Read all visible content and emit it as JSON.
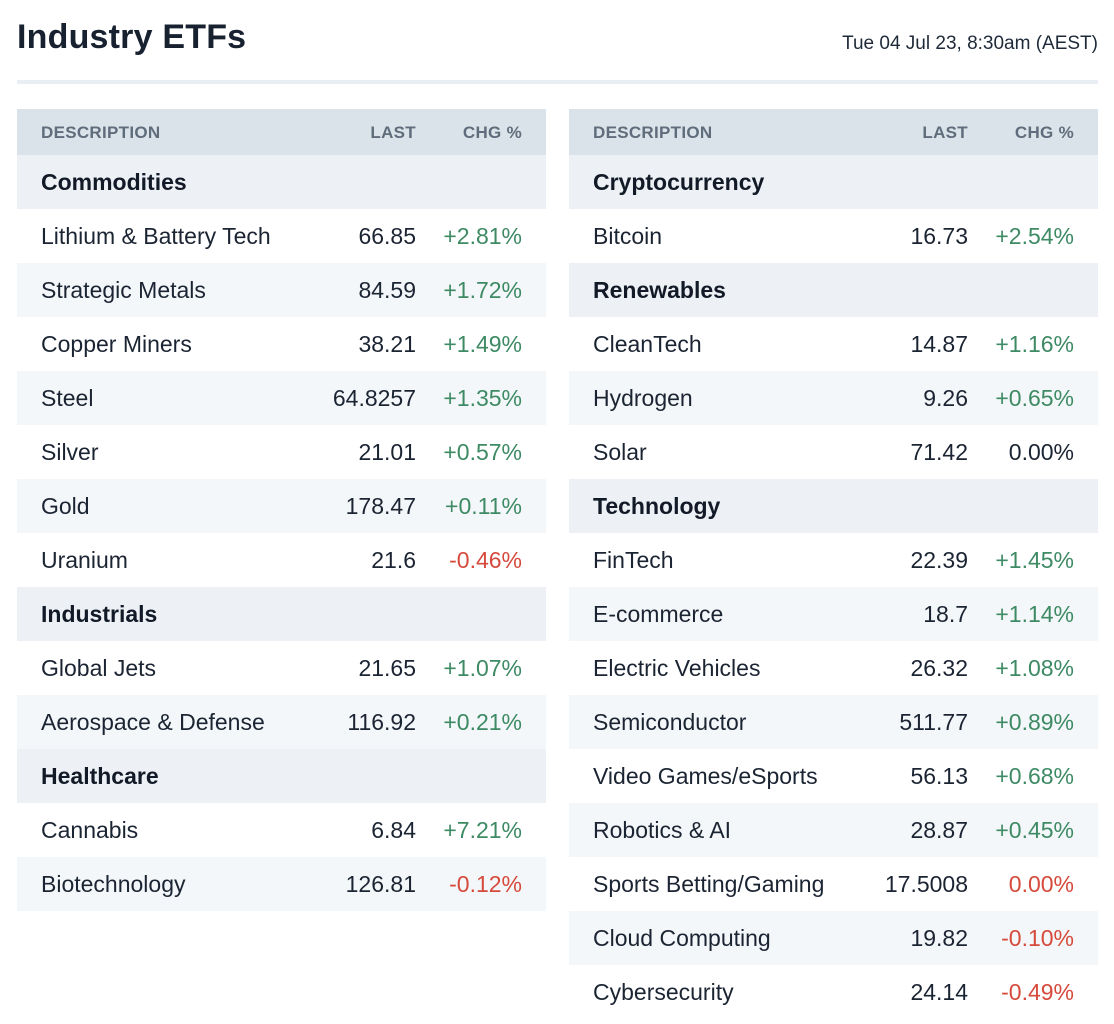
{
  "header": {
    "title": "Industry ETFs",
    "timestamp": "Tue 04 Jul 23, 8:30am (AEST)"
  },
  "table_headers": {
    "description": "DESCRIPTION",
    "last": "LAST",
    "change": "CHG %"
  },
  "colors": {
    "positive": "#3d8a64",
    "negative": "#d64a3c",
    "header_bg": "#dbe3ea",
    "category_bg": "#edf1f5"
  },
  "left_column": [
    {
      "type": "category",
      "name": "Commodities"
    },
    {
      "type": "item",
      "name": "Lithium & Battery Tech",
      "last": "66.85",
      "chg": "+2.81%",
      "dir": "pos"
    },
    {
      "type": "item",
      "name": "Strategic Metals",
      "last": "84.59",
      "chg": "+1.72%",
      "dir": "pos"
    },
    {
      "type": "item",
      "name": "Copper Miners",
      "last": "38.21",
      "chg": "+1.49%",
      "dir": "pos"
    },
    {
      "type": "item",
      "name": "Steel",
      "last": "64.8257",
      "chg": "+1.35%",
      "dir": "pos"
    },
    {
      "type": "item",
      "name": "Silver",
      "last": "21.01",
      "chg": "+0.57%",
      "dir": "pos"
    },
    {
      "type": "item",
      "name": "Gold",
      "last": "178.47",
      "chg": "+0.11%",
      "dir": "pos"
    },
    {
      "type": "item",
      "name": "Uranium",
      "last": "21.6",
      "chg": "-0.46%",
      "dir": "neg"
    },
    {
      "type": "category",
      "name": "Industrials"
    },
    {
      "type": "item",
      "name": "Global Jets",
      "last": "21.65",
      "chg": "+1.07%",
      "dir": "pos"
    },
    {
      "type": "item",
      "name": "Aerospace & Defense",
      "last": "116.92",
      "chg": "+0.21%",
      "dir": "pos"
    },
    {
      "type": "category",
      "name": "Healthcare"
    },
    {
      "type": "item",
      "name": "Cannabis",
      "last": "6.84",
      "chg": "+7.21%",
      "dir": "pos"
    },
    {
      "type": "item",
      "name": "Biotechnology",
      "last": "126.81",
      "chg": "-0.12%",
      "dir": "neg"
    }
  ],
  "right_column": [
    {
      "type": "category",
      "name": "Cryptocurrency"
    },
    {
      "type": "item",
      "name": "Bitcoin",
      "last": "16.73",
      "chg": "+2.54%",
      "dir": "pos"
    },
    {
      "type": "category",
      "name": "Renewables"
    },
    {
      "type": "item",
      "name": "CleanTech",
      "last": "14.87",
      "chg": "+1.16%",
      "dir": "pos"
    },
    {
      "type": "item",
      "name": "Hydrogen",
      "last": "9.26",
      "chg": "+0.65%",
      "dir": "pos"
    },
    {
      "type": "item",
      "name": "Solar",
      "last": "71.42",
      "chg": "0.00%",
      "dir": "flat"
    },
    {
      "type": "category",
      "name": "Technology"
    },
    {
      "type": "item",
      "name": "FinTech",
      "last": "22.39",
      "chg": "+1.45%",
      "dir": "pos"
    },
    {
      "type": "item",
      "name": "E-commerce",
      "last": "18.7",
      "chg": "+1.14%",
      "dir": "pos"
    },
    {
      "type": "item",
      "name": "Electric Vehicles",
      "last": "26.32",
      "chg": "+1.08%",
      "dir": "pos"
    },
    {
      "type": "item",
      "name": "Semiconductor",
      "last": "511.77",
      "chg": "+0.89%",
      "dir": "pos"
    },
    {
      "type": "item",
      "name": "Video Games/eSports",
      "last": "56.13",
      "chg": "+0.68%",
      "dir": "pos"
    },
    {
      "type": "item",
      "name": "Robotics & AI",
      "last": "28.87",
      "chg": "+0.45%",
      "dir": "pos"
    },
    {
      "type": "item",
      "name": "Sports Betting/Gaming",
      "last": "17.5008",
      "chg": "0.00%",
      "dir": "neg"
    },
    {
      "type": "item",
      "name": "Cloud Computing",
      "last": "19.82",
      "chg": "-0.10%",
      "dir": "neg"
    },
    {
      "type": "item",
      "name": "Cybersecurity",
      "last": "24.14",
      "chg": "-0.49%",
      "dir": "neg"
    }
  ]
}
